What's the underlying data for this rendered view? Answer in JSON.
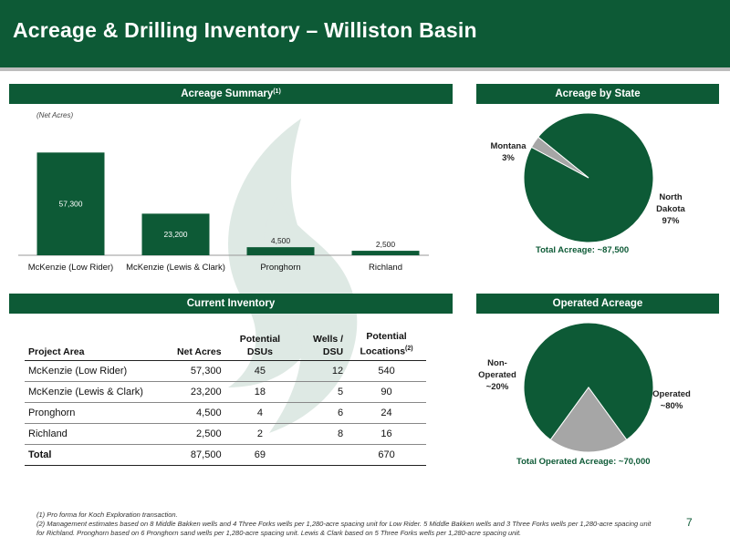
{
  "page": {
    "title": "Acreage & Drilling Inventory – Williston Basin",
    "number": "7",
    "brand_color": "#0d5a36"
  },
  "sections": {
    "acreage_summary": "Acreage Summary",
    "acreage_summary_sup": "(1)",
    "acreage_by_state": "Acreage by State",
    "current_inventory": "Current Inventory",
    "operated_acreage": "Operated Acreage"
  },
  "acreage_chart": {
    "subtitle": "(Net Acres)"
  },
  "chart_data": [
    {
      "type": "bar",
      "categories": [
        "McKenzie (Low Rider)",
        "McKenzie (Lewis & Clark)",
        "Pronghorn",
        "Richland"
      ],
      "values": [
        57300,
        23200,
        4500,
        2500
      ],
      "value_labels": [
        "57,300",
        "23,200",
        "4,500",
        "2,500"
      ],
      "ylim": [
        0,
        60000
      ],
      "color": "#0d5a36",
      "grid": false
    },
    {
      "type": "pie",
      "labels": [
        "North Dakota",
        "Montana"
      ],
      "values": [
        97,
        3
      ],
      "value_labels": [
        "97%",
        "3%"
      ],
      "colors": [
        "#0d5a36",
        "#a6a6a6"
      ],
      "total": "Total Acreage: ~87,500"
    },
    {
      "type": "pie",
      "labels": [
        "Operated",
        "Non-Operated"
      ],
      "values": [
        80,
        20
      ],
      "value_labels": [
        "~80%",
        "~20%"
      ],
      "colors": [
        "#0d5a36",
        "#a6a6a6"
      ],
      "total": "Total Operated Acreage: ~70,000"
    }
  ],
  "pie_labels": {
    "montana": [
      "Montana",
      "3%"
    ],
    "north_dakota": [
      "North",
      "Dakota",
      "97%"
    ],
    "non_operated": [
      "Non-",
      "Operated",
      "~20%"
    ],
    "operated": [
      "Operated",
      "~80%"
    ]
  },
  "inventory": {
    "headers": {
      "project_area": "Project Area",
      "net_acres": "Net Acres",
      "dsus_line1": "Potential",
      "dsus_line2": "DSUs",
      "wells_line1": "Wells /",
      "wells_line2": "DSU",
      "loc_line1": "Potential",
      "loc_line2": "Locations",
      "loc_sup": "(2)"
    },
    "rows": [
      {
        "area": "McKenzie (Low Rider)",
        "net_acres": "57,300",
        "dsus": "45",
        "wells": "12",
        "locations": "540"
      },
      {
        "area": "McKenzie (Lewis & Clark)",
        "net_acres": "23,200",
        "dsus": "18",
        "wells": "5",
        "locations": "90"
      },
      {
        "area": "Pronghorn",
        "net_acres": "4,500",
        "dsus": "4",
        "wells": "6",
        "locations": "24"
      },
      {
        "area": "Richland",
        "net_acres": "2,500",
        "dsus": "2",
        "wells": "8",
        "locations": "16"
      }
    ],
    "total": {
      "area": "Total",
      "net_acres": "87,500",
      "dsus": "69",
      "wells": "",
      "locations": "670"
    }
  },
  "footnotes": {
    "f1": "(1) Pro forma for Koch Exploration transaction.",
    "f2": "(2) Management estimates based on 8 Middle Bakken wells and 4 Three Forks wells per 1,280-acre spacing unit for Low Rider. 5 Middle Bakken wells and 3 Three Forks wells per 1,280-acre spacing unit for Richland. Pronghorn based on 6 Pronghorn sand wells per 1,280-acre spacing unit. Lewis & Clark based on 5 Three Forks wells per 1,280-acre spacing unit."
  }
}
